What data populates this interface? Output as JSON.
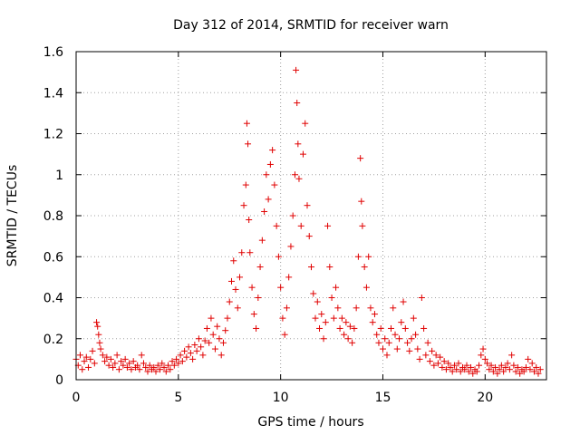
{
  "chart_data": {
    "type": "scatter",
    "title": "Day 312 of 2014, SRMTID for receiver warn",
    "xlabel": "GPS time / hours",
    "ylabel": "SRMTID / TECUs",
    "xlim": [
      0,
      23
    ],
    "ylim": [
      0,
      1.6
    ],
    "xticks": [
      0,
      5,
      10,
      15,
      20
    ],
    "yticks": [
      0,
      0.2,
      0.4,
      0.6,
      0.8,
      1,
      1.2,
      1.4,
      1.6
    ],
    "ytick_labels": [
      "0",
      "0.2",
      "0.4",
      "0.6",
      "0.8",
      "1",
      "1.2",
      "1.4",
      "1.6"
    ],
    "xtick_labels": [
      "0",
      "5",
      "10",
      "15",
      "20"
    ],
    "grid": true,
    "marker": "+",
    "color": "#e00000",
    "series": [
      {
        "name": "SRMTID",
        "points": [
          [
            0.0,
            0.1
          ],
          [
            0.1,
            0.07
          ],
          [
            0.2,
            0.12
          ],
          [
            0.3,
            0.05
          ],
          [
            0.4,
            0.09
          ],
          [
            0.5,
            0.11
          ],
          [
            0.6,
            0.06
          ],
          [
            0.7,
            0.1
          ],
          [
            0.8,
            0.14
          ],
          [
            0.9,
            0.08
          ],
          [
            1.0,
            0.28
          ],
          [
            1.05,
            0.26
          ],
          [
            1.1,
            0.22
          ],
          [
            1.15,
            0.18
          ],
          [
            1.2,
            0.15
          ],
          [
            1.3,
            0.12
          ],
          [
            1.4,
            0.09
          ],
          [
            1.5,
            0.11
          ],
          [
            1.6,
            0.07
          ],
          [
            1.7,
            0.1
          ],
          [
            1.8,
            0.06
          ],
          [
            1.9,
            0.08
          ],
          [
            2.0,
            0.12
          ],
          [
            2.1,
            0.05
          ],
          [
            2.2,
            0.09
          ],
          [
            2.3,
            0.07
          ],
          [
            2.4,
            0.1
          ],
          [
            2.5,
            0.06
          ],
          [
            2.6,
            0.08
          ],
          [
            2.7,
            0.05
          ],
          [
            2.8,
            0.09
          ],
          [
            2.9,
            0.06
          ],
          [
            3.0,
            0.07
          ],
          [
            3.1,
            0.05
          ],
          [
            3.2,
            0.12
          ],
          [
            3.3,
            0.08
          ],
          [
            3.4,
            0.06
          ],
          [
            3.5,
            0.04
          ],
          [
            3.6,
            0.07
          ],
          [
            3.7,
            0.05
          ],
          [
            3.8,
            0.06
          ],
          [
            3.9,
            0.04
          ],
          [
            4.0,
            0.07
          ],
          [
            4.1,
            0.05
          ],
          [
            4.2,
            0.08
          ],
          [
            4.3,
            0.06
          ],
          [
            4.4,
            0.04
          ],
          [
            4.5,
            0.07
          ],
          [
            4.6,
            0.05
          ],
          [
            4.7,
            0.09
          ],
          [
            4.8,
            0.07
          ],
          [
            4.9,
            0.1
          ],
          [
            5.0,
            0.08
          ],
          [
            5.1,
            0.12
          ],
          [
            5.2,
            0.09
          ],
          [
            5.3,
            0.14
          ],
          [
            5.4,
            0.11
          ],
          [
            5.5,
            0.16
          ],
          [
            5.6,
            0.13
          ],
          [
            5.7,
            0.1
          ],
          [
            5.8,
            0.17
          ],
          [
            5.9,
            0.14
          ],
          [
            6.0,
            0.2
          ],
          [
            6.1,
            0.16
          ],
          [
            6.2,
            0.12
          ],
          [
            6.3,
            0.19
          ],
          [
            6.4,
            0.25
          ],
          [
            6.5,
            0.18
          ],
          [
            6.6,
            0.3
          ],
          [
            6.7,
            0.22
          ],
          [
            6.8,
            0.15
          ],
          [
            6.9,
            0.26
          ],
          [
            7.0,
            0.2
          ],
          [
            7.1,
            0.12
          ],
          [
            7.2,
            0.18
          ],
          [
            7.3,
            0.24
          ],
          [
            7.4,
            0.3
          ],
          [
            7.5,
            0.38
          ],
          [
            7.6,
            0.48
          ],
          [
            7.7,
            0.58
          ],
          [
            7.8,
            0.44
          ],
          [
            7.9,
            0.35
          ],
          [
            8.0,
            0.5
          ],
          [
            8.1,
            0.62
          ],
          [
            8.2,
            0.85
          ],
          [
            8.3,
            0.95
          ],
          [
            8.35,
            1.25
          ],
          [
            8.4,
            1.15
          ],
          [
            8.45,
            0.78
          ],
          [
            8.5,
            0.62
          ],
          [
            8.6,
            0.45
          ],
          [
            8.7,
            0.32
          ],
          [
            8.8,
            0.25
          ],
          [
            8.9,
            0.4
          ],
          [
            9.0,
            0.55
          ],
          [
            9.1,
            0.68
          ],
          [
            9.2,
            0.82
          ],
          [
            9.3,
            1.0
          ],
          [
            9.4,
            0.88
          ],
          [
            9.5,
            1.05
          ],
          [
            9.6,
            1.12
          ],
          [
            9.7,
            0.95
          ],
          [
            9.8,
            0.75
          ],
          [
            9.9,
            0.6
          ],
          [
            10.0,
            0.45
          ],
          [
            10.1,
            0.3
          ],
          [
            10.2,
            0.22
          ],
          [
            10.3,
            0.35
          ],
          [
            10.4,
            0.5
          ],
          [
            10.5,
            0.65
          ],
          [
            10.6,
            0.8
          ],
          [
            10.7,
            1.0
          ],
          [
            10.75,
            1.51
          ],
          [
            10.8,
            1.35
          ],
          [
            10.85,
            1.15
          ],
          [
            10.9,
            0.98
          ],
          [
            11.0,
            0.75
          ],
          [
            11.1,
            1.1
          ],
          [
            11.2,
            1.25
          ],
          [
            11.3,
            0.85
          ],
          [
            11.4,
            0.7
          ],
          [
            11.5,
            0.55
          ],
          [
            11.6,
            0.42
          ],
          [
            11.7,
            0.3
          ],
          [
            11.8,
            0.38
          ],
          [
            11.9,
            0.25
          ],
          [
            12.0,
            0.32
          ],
          [
            12.1,
            0.2
          ],
          [
            12.2,
            0.28
          ],
          [
            12.3,
            0.75
          ],
          [
            12.4,
            0.55
          ],
          [
            12.5,
            0.4
          ],
          [
            12.6,
            0.3
          ],
          [
            12.7,
            0.45
          ],
          [
            12.8,
            0.35
          ],
          [
            12.9,
            0.25
          ],
          [
            13.0,
            0.3
          ],
          [
            13.1,
            0.22
          ],
          [
            13.2,
            0.28
          ],
          [
            13.3,
            0.2
          ],
          [
            13.4,
            0.26
          ],
          [
            13.5,
            0.18
          ],
          [
            13.6,
            0.25
          ],
          [
            13.7,
            0.35
          ],
          [
            13.8,
            0.6
          ],
          [
            13.9,
            1.08
          ],
          [
            13.95,
            0.87
          ],
          [
            14.0,
            0.75
          ],
          [
            14.1,
            0.55
          ],
          [
            14.2,
            0.45
          ],
          [
            14.3,
            0.6
          ],
          [
            14.4,
            0.35
          ],
          [
            14.5,
            0.28
          ],
          [
            14.6,
            0.32
          ],
          [
            14.7,
            0.22
          ],
          [
            14.8,
            0.18
          ],
          [
            14.9,
            0.25
          ],
          [
            15.0,
            0.15
          ],
          [
            15.1,
            0.2
          ],
          [
            15.2,
            0.12
          ],
          [
            15.3,
            0.18
          ],
          [
            15.4,
            0.25
          ],
          [
            15.5,
            0.35
          ],
          [
            15.6,
            0.22
          ],
          [
            15.7,
            0.15
          ],
          [
            15.8,
            0.2
          ],
          [
            15.9,
            0.28
          ],
          [
            16.0,
            0.38
          ],
          [
            16.1,
            0.25
          ],
          [
            16.2,
            0.18
          ],
          [
            16.3,
            0.14
          ],
          [
            16.4,
            0.2
          ],
          [
            16.5,
            0.3
          ],
          [
            16.6,
            0.22
          ],
          [
            16.7,
            0.15
          ],
          [
            16.8,
            0.1
          ],
          [
            16.9,
            0.4
          ],
          [
            17.0,
            0.25
          ],
          [
            17.1,
            0.12
          ],
          [
            17.2,
            0.18
          ],
          [
            17.3,
            0.09
          ],
          [
            17.4,
            0.14
          ],
          [
            17.5,
            0.07
          ],
          [
            17.6,
            0.12
          ],
          [
            17.7,
            0.08
          ],
          [
            17.8,
            0.11
          ],
          [
            17.9,
            0.06
          ],
          [
            18.0,
            0.09
          ],
          [
            18.1,
            0.05
          ],
          [
            18.2,
            0.08
          ],
          [
            18.3,
            0.06
          ],
          [
            18.4,
            0.04
          ],
          [
            18.5,
            0.07
          ],
          [
            18.6,
            0.05
          ],
          [
            18.7,
            0.08
          ],
          [
            18.8,
            0.04
          ],
          [
            18.9,
            0.06
          ],
          [
            19.0,
            0.05
          ],
          [
            19.1,
            0.07
          ],
          [
            19.2,
            0.04
          ],
          [
            19.3,
            0.06
          ],
          [
            19.4,
            0.03
          ],
          [
            19.5,
            0.05
          ],
          [
            19.6,
            0.04
          ],
          [
            19.7,
            0.07
          ],
          [
            19.8,
            0.12
          ],
          [
            19.9,
            0.15
          ],
          [
            20.0,
            0.1
          ],
          [
            20.1,
            0.08
          ],
          [
            20.2,
            0.05
          ],
          [
            20.3,
            0.07
          ],
          [
            20.4,
            0.04
          ],
          [
            20.5,
            0.06
          ],
          [
            20.6,
            0.03
          ],
          [
            20.7,
            0.05
          ],
          [
            20.8,
            0.07
          ],
          [
            20.9,
            0.04
          ],
          [
            21.0,
            0.06
          ],
          [
            21.1,
            0.08
          ],
          [
            21.2,
            0.05
          ],
          [
            21.3,
            0.12
          ],
          [
            21.4,
            0.07
          ],
          [
            21.5,
            0.04
          ],
          [
            21.6,
            0.06
          ],
          [
            21.7,
            0.03
          ],
          [
            21.8,
            0.05
          ],
          [
            21.9,
            0.04
          ],
          [
            22.0,
            0.06
          ],
          [
            22.1,
            0.1
          ],
          [
            22.2,
            0.05
          ],
          [
            22.3,
            0.08
          ],
          [
            22.4,
            0.04
          ],
          [
            22.5,
            0.06
          ],
          [
            22.6,
            0.03
          ],
          [
            22.7,
            0.05
          ]
        ]
      }
    ]
  }
}
